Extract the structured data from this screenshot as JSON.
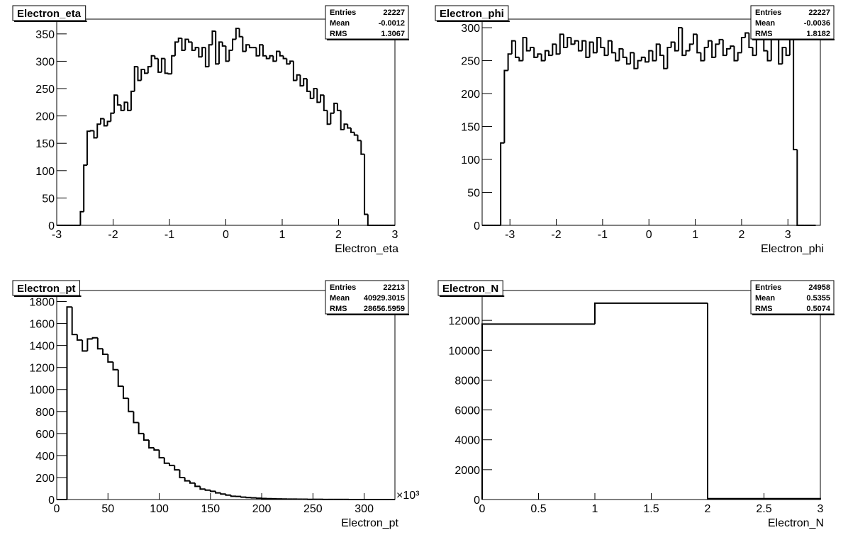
{
  "chart_data": [
    {
      "type": "histogram",
      "title": "Electron_eta",
      "x_label": "Electron_eta",
      "stats": [
        {
          "label": "Entries",
          "value": 22227
        },
        {
          "label": "Mean",
          "value": -0.0012
        },
        {
          "label": "RMS",
          "value": 1.3067
        }
      ],
      "bins": [
        -3,
        -2.94,
        -2.88,
        -2.82,
        -2.76,
        -2.7,
        -2.64,
        -2.58,
        -2.52,
        -2.46,
        -2.4,
        -2.34,
        -2.28,
        -2.22,
        -2.16,
        -2.1,
        -2.04,
        -1.98,
        -1.92,
        -1.86,
        -1.8,
        -1.74,
        -1.68,
        -1.62,
        -1.56,
        -1.5,
        -1.44,
        -1.38,
        -1.32,
        -1.26,
        -1.2,
        -1.14,
        -1.08,
        -1.02,
        -0.96,
        -0.9,
        -0.84,
        -0.78,
        -0.72,
        -0.66,
        -0.6,
        -0.54,
        -0.48,
        -0.42,
        -0.36,
        -0.3,
        -0.24,
        -0.18,
        -0.12,
        -0.06,
        0,
        0.06,
        0.12,
        0.18,
        0.24,
        0.3,
        0.36,
        0.42,
        0.48,
        0.54,
        0.6,
        0.66,
        0.72,
        0.78,
        0.84,
        0.9,
        0.96,
        1.02,
        1.08,
        1.14,
        1.2,
        1.26,
        1.32,
        1.38,
        1.44,
        1.5,
        1.56,
        1.62,
        1.68,
        1.74,
        1.8,
        1.86,
        1.92,
        1.98,
        2.04,
        2.1,
        2.16,
        2.22,
        2.28,
        2.34,
        2.4,
        2.46,
        2.52,
        2.58,
        2.64,
        2.7,
        2.76,
        2.82,
        2.88,
        2.94,
        3
      ],
      "values": [
        0,
        0,
        0,
        0,
        0,
        0,
        0,
        25,
        110,
        172,
        173,
        160,
        185,
        195,
        182,
        190,
        205,
        238,
        220,
        210,
        225,
        210,
        245,
        290,
        265,
        285,
        278,
        290,
        310,
        305,
        280,
        305,
        278,
        277,
        310,
        335,
        342,
        320,
        340,
        335,
        320,
        325,
        308,
        325,
        290,
        330,
        355,
        295,
        335,
        328,
        300,
        320,
        340,
        360,
        345,
        318,
        330,
        325,
        325,
        310,
        330,
        310,
        305,
        310,
        300,
        318,
        310,
        305,
        295,
        300,
        265,
        275,
        255,
        268,
        245,
        232,
        250,
        225,
        238,
        210,
        185,
        205,
        223,
        210,
        175,
        185,
        178,
        170,
        165,
        155,
        130,
        20,
        0,
        0,
        0,
        0,
        0,
        0,
        0,
        0
      ],
      "color": "#000000",
      "xlim": [
        -3,
        3
      ],
      "xticks": [
        -3,
        -2,
        -1,
        0,
        1,
        2,
        3
      ],
      "ylim": [
        0,
        377
      ],
      "yticks": [
        0,
        50,
        100,
        150,
        200,
        250,
        300,
        350
      ]
    },
    {
      "type": "histogram",
      "title": "Electron_phi",
      "x_label": "Electron_phi",
      "stats": [
        {
          "label": "Entries",
          "value": 22227
        },
        {
          "label": "Mean",
          "value": -0.0036
        },
        {
          "label": "RMS",
          "value": 1.8182
        }
      ],
      "bins": [
        -3.6,
        -3.52,
        -3.44,
        -3.36,
        -3.28,
        -3.2,
        -3.12,
        -3.04,
        -2.96,
        -2.88,
        -2.8,
        -2.72,
        -2.64,
        -2.56,
        -2.48,
        -2.4,
        -2.32,
        -2.24,
        -2.16,
        -2.08,
        -2,
        -1.92,
        -1.84,
        -1.76,
        -1.68,
        -1.6,
        -1.52,
        -1.44,
        -1.36,
        -1.28,
        -1.2,
        -1.12,
        -1.04,
        -0.96,
        -0.88,
        -0.8,
        -0.72,
        -0.64,
        -0.56,
        -0.48,
        -0.4,
        -0.32,
        -0.24,
        -0.16,
        -0.08,
        0,
        0.08,
        0.16,
        0.24,
        0.32,
        0.4,
        0.48,
        0.56,
        0.64,
        0.72,
        0.8,
        0.88,
        0.96,
        1.04,
        1.12,
        1.2,
        1.28,
        1.36,
        1.44,
        1.52,
        1.6,
        1.68,
        1.76,
        1.84,
        1.92,
        2,
        2.08,
        2.16,
        2.24,
        2.32,
        2.4,
        2.48,
        2.56,
        2.64,
        2.72,
        2.8,
        2.88,
        2.96,
        3.04,
        3.12,
        3.2,
        3.28,
        3.36,
        3.44,
        3.52,
        3.6
      ],
      "values": [
        0,
        0,
        0,
        0,
        0,
        125,
        235,
        260,
        280,
        255,
        250,
        285,
        265,
        270,
        255,
        260,
        250,
        265,
        258,
        275,
        260,
        290,
        270,
        285,
        275,
        280,
        265,
        280,
        255,
        278,
        262,
        285,
        270,
        258,
        280,
        262,
        250,
        268,
        255,
        245,
        262,
        238,
        250,
        255,
        248,
        265,
        250,
        275,
        258,
        238,
        270,
        278,
        265,
        300,
        258,
        265,
        275,
        290,
        262,
        250,
        270,
        280,
        255,
        275,
        282,
        258,
        268,
        272,
        250,
        262,
        285,
        292,
        270,
        258,
        285,
        295,
        265,
        250,
        282,
        290,
        245,
        270,
        258,
        300,
        115,
        0,
        0,
        0,
        0,
        0
      ],
      "color": "#000000",
      "xlim": [
        -3.6,
        3.7
      ],
      "xticks": [
        -3,
        -2,
        -1,
        0,
        1,
        2,
        3
      ],
      "ylim": [
        0,
        313
      ],
      "yticks": [
        0,
        50,
        100,
        150,
        200,
        250,
        300
      ]
    },
    {
      "type": "histogram",
      "title": "Electron_pt",
      "x_label": "Electron_pt",
      "x_multiplier": "×10³",
      "stats": [
        {
          "label": "Entries",
          "value": 22213
        },
        {
          "label": "Mean",
          "value": 40929.3015
        },
        {
          "label": "RMS",
          "value": 28656.5959
        }
      ],
      "bins": [
        0,
        5,
        10,
        15,
        20,
        25,
        30,
        35,
        40,
        45,
        50,
        55,
        60,
        65,
        70,
        75,
        80,
        85,
        90,
        95,
        100,
        105,
        110,
        115,
        120,
        125,
        130,
        135,
        140,
        145,
        150,
        155,
        160,
        165,
        170,
        175,
        180,
        185,
        190,
        195,
        200,
        205,
        210,
        215,
        220,
        225,
        230,
        235,
        240,
        245,
        250,
        255,
        260,
        265,
        270,
        275,
        280,
        285,
        290,
        295,
        300,
        305,
        310,
        315,
        320,
        325,
        330
      ],
      "values": [
        0,
        0,
        1750,
        1500,
        1450,
        1350,
        1460,
        1470,
        1370,
        1320,
        1250,
        1180,
        1030,
        920,
        800,
        700,
        600,
        540,
        470,
        450,
        380,
        330,
        310,
        270,
        200,
        170,
        150,
        120,
        95,
        85,
        75,
        60,
        50,
        40,
        30,
        28,
        22,
        18,
        15,
        12,
        10,
        8,
        7,
        6,
        5,
        4,
        4,
        3,
        3,
        2,
        2,
        2,
        1,
        1,
        1,
        1,
        1,
        0,
        0,
        0,
        0,
        0,
        0,
        0,
        0,
        0
      ],
      "color": "#000000",
      "xlim": [
        0,
        330
      ],
      "xticks": [
        0,
        50,
        100,
        150,
        200,
        250,
        300
      ],
      "ylim": [
        0,
        1900
      ],
      "yticks": [
        0,
        200,
        400,
        600,
        800,
        1000,
        1200,
        1400,
        1600,
        1800
      ]
    },
    {
      "type": "histogram",
      "title": "Electron_N",
      "x_label": "Electron_N",
      "stats": [
        {
          "label": "Entries",
          "value": 24958
        },
        {
          "label": "Mean",
          "value": 0.5355
        },
        {
          "label": "RMS",
          "value": 0.5074
        }
      ],
      "bins": [
        0,
        1,
        2,
        3
      ],
      "values": [
        11750,
        13150,
        60
      ],
      "color": "#000000",
      "xlim": [
        0,
        3
      ],
      "xticks": [
        0,
        0.5,
        1,
        1.5,
        2,
        2.5,
        3
      ],
      "ylim": [
        0,
        14000
      ],
      "yticks": [
        0,
        2000,
        4000,
        6000,
        8000,
        10000,
        12000
      ]
    }
  ]
}
